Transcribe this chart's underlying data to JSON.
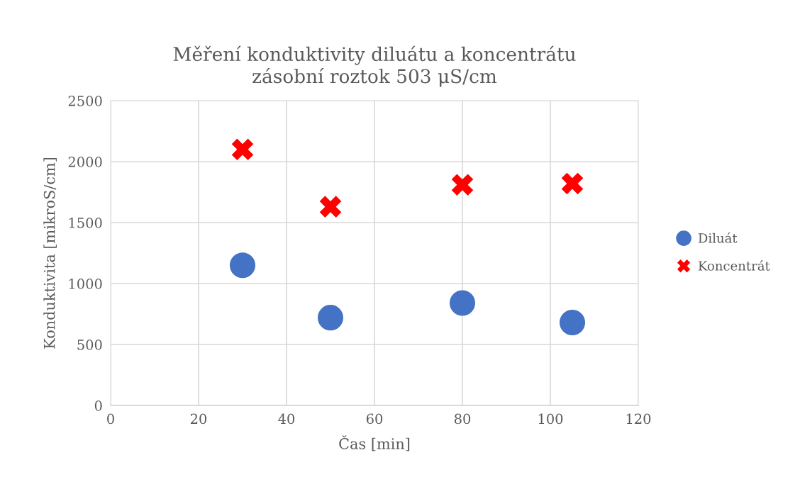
{
  "chart_data": {
    "type": "scatter",
    "title": "Měření konduktivity diluátu a koncentrátu\nzásobní roztok 503 μS/cm",
    "xlabel": "Čas [min]",
    "ylabel": "Konduktivita [mikroS/cm]",
    "x": [
      30,
      50,
      80,
      105
    ],
    "series": [
      {
        "name": "Diluát",
        "color": "#4472c4",
        "marker": "circle",
        "values": [
          1150,
          720,
          840,
          680
        ]
      },
      {
        "name": "Koncentrát",
        "color": "#ff0000",
        "marker": "cross",
        "values": [
          2100,
          1630,
          1810,
          1820
        ]
      }
    ],
    "xlim": [
      0,
      120
    ],
    "xticks": [
      0,
      20,
      40,
      60,
      80,
      100,
      120
    ],
    "ylim": [
      0,
      2500
    ],
    "yticks": [
      0,
      500,
      1000,
      1500,
      2000,
      2500
    ],
    "grid": true,
    "legend": "right"
  }
}
